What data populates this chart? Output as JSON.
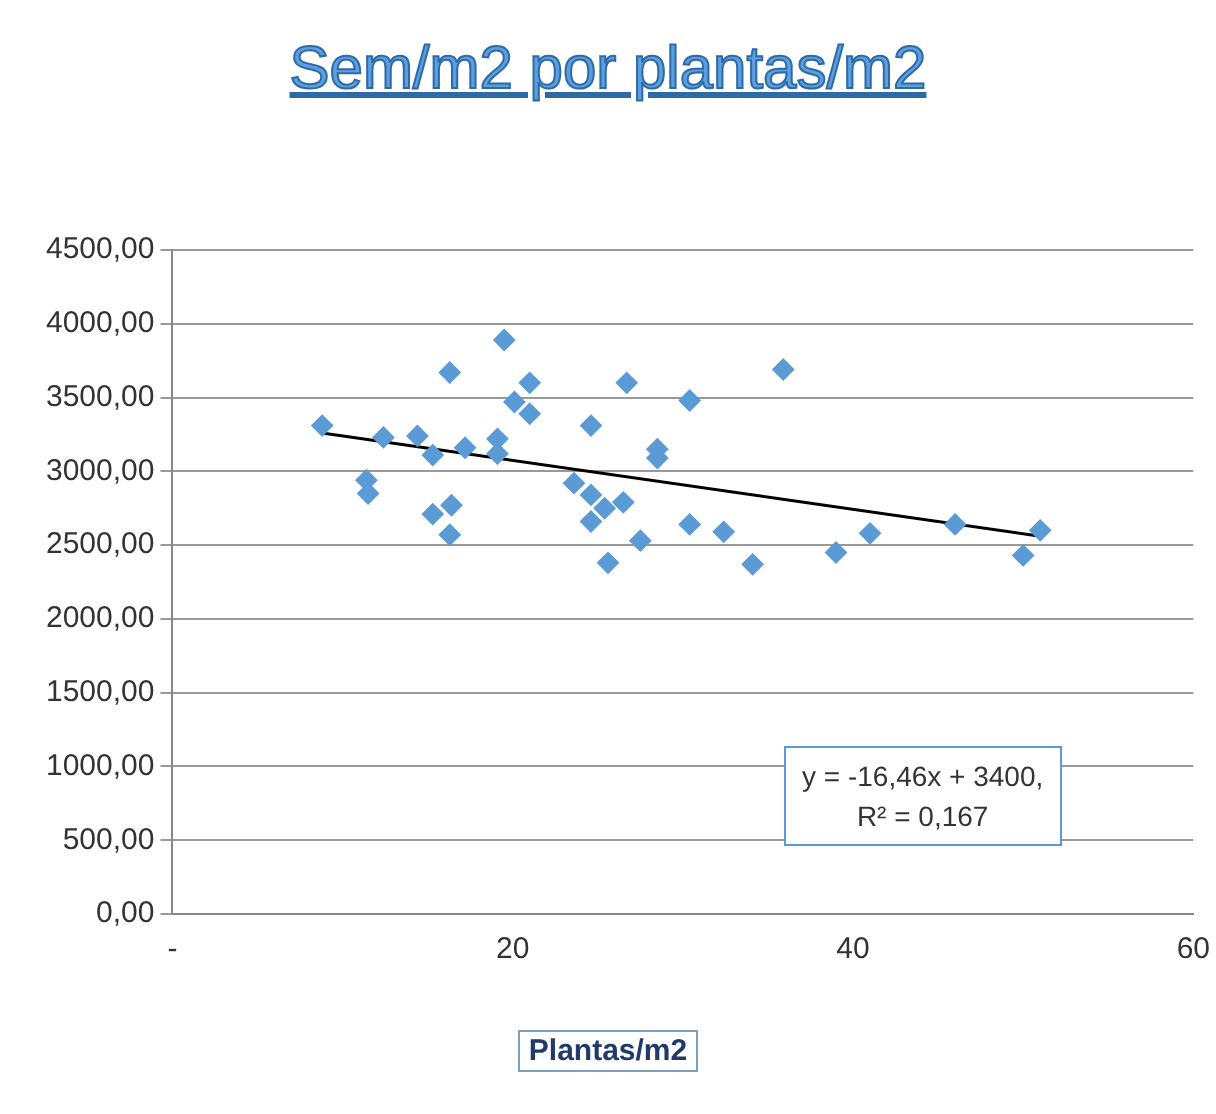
{
  "chart_data": {
    "type": "scatter",
    "title": "Sem/m2 por plantas/m2",
    "xlabel": "Plantas/m2",
    "series": [
      {
        "type": "scatter",
        "color": "#5b9bd5",
        "marker": "diamond",
        "x": [
          16.3,
          21.0,
          20.1,
          21.0,
          26.7,
          30.4,
          35.9,
          8.8,
          12.4,
          14.4,
          15.3,
          17.2,
          19.1,
          19.1,
          24.6,
          28.5,
          28.5,
          11.4,
          11.5,
          15.3,
          16.4,
          16.3,
          23.6,
          24.6,
          25.4,
          24.6,
          26.5,
          27.5,
          25.6,
          30.4,
          32.4,
          34.1,
          19.5,
          39,
          41,
          46,
          50,
          51
        ],
        "values": [
          3670,
          3600,
          3470,
          3390,
          3600,
          3480,
          3690,
          3310,
          3230,
          3240,
          3110,
          3160,
          3220,
          3120,
          3310,
          3150,
          3090,
          2940,
          2850,
          2710,
          2770,
          2570,
          2920,
          2840,
          2750,
          2660,
          2790,
          2530,
          2380,
          2640,
          2590,
          2370,
          3890,
          2450,
          2580,
          2640,
          2430,
          2600
        ]
      },
      {
        "type": "line",
        "color": "#000000",
        "marker": "none",
        "x": [
          8.8,
          51
        ],
        "values": [
          3260,
          2560
        ]
      }
    ],
    "xlim": [
      0,
      60
    ],
    "xticks": [
      {
        "value": 0,
        "label": "-"
      },
      20,
      40,
      60
    ],
    "ylim": [
      0,
      4500
    ],
    "yticks": [
      {
        "value": 0,
        "label": "0,00"
      },
      {
        "value": 500,
        "label": "500,00"
      },
      {
        "value": 1000,
        "label": "1000,00"
      },
      {
        "value": 1500,
        "label": "1500,00"
      },
      {
        "value": 2000,
        "label": "2000,00"
      },
      {
        "value": 2500,
        "label": "2500,00"
      },
      {
        "value": 3000,
        "label": "3000,00"
      },
      {
        "value": 3500,
        "label": "3500,00"
      },
      {
        "value": 4000,
        "label": "4000,00"
      },
      {
        "value": 4500,
        "label": "4500,00"
      }
    ],
    "grid": "y",
    "legend": false,
    "annotations": [
      "y = -16,46x + 3400,",
      "R² = 0,167"
    ]
  }
}
